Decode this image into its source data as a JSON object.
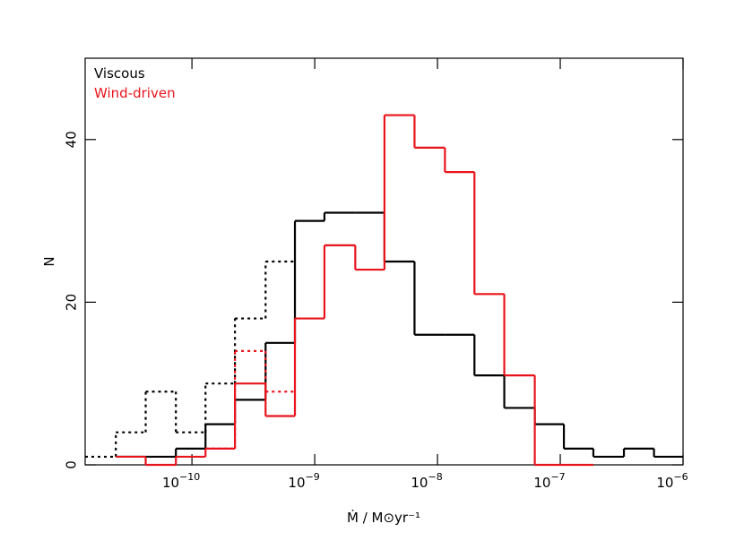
{
  "chart_data": {
    "type": "histogram",
    "xlabel": "Ṁ / M⊙yr⁻¹",
    "ylabel": "N",
    "xscale": "log",
    "xlim": [
      1.35e-11,
      1e-06
    ],
    "ylim": [
      0,
      50
    ],
    "xticks": [
      {
        "value": 1e-10,
        "label": "10−10"
      },
      {
        "value": 1e-09,
        "label": "10−9"
      },
      {
        "value": 1e-08,
        "label": "10−8"
      },
      {
        "value": 1e-07,
        "label": "10−7"
      },
      {
        "value": 1e-06,
        "label": "10−6"
      }
    ],
    "yticks": [
      0,
      20,
      40
    ],
    "bins": [
      1.35e-11,
      2.4e-11,
      4.2e-11,
      7.4e-11,
      1.29e-10,
      2.24e-10,
      3.98e-10,
      6.9e-10,
      1.2e-09,
      2.14e-09,
      3.7e-09,
      6.5e-09,
      1.15e-08,
      2e-08,
      3.5e-08,
      6.2e-08,
      1.07e-07,
      1.86e-07,
      3.3e-07,
      5.8e-07,
      1e-06
    ],
    "series": [
      {
        "name": "Viscous",
        "color": "#000000",
        "values": [
          null,
          1,
          1,
          2,
          5,
          8,
          15,
          30,
          31,
          31,
          25,
          16,
          16,
          11,
          7,
          5,
          2,
          1,
          2,
          1
        ],
        "dotted_values": [
          1,
          4,
          9,
          4,
          10,
          18,
          25,
          null,
          null,
          null,
          null,
          null,
          null,
          null,
          null,
          null,
          null,
          null,
          null,
          null
        ]
      },
      {
        "name": "Wind-driven",
        "color": "#e8141c",
        "values": [
          null,
          1,
          0,
          1,
          2,
          10,
          6,
          18,
          27,
          24,
          43,
          39,
          36,
          21,
          11,
          0,
          0,
          null,
          null,
          null
        ],
        "dotted_values": [
          null,
          null,
          null,
          null,
          2,
          14,
          9,
          null,
          null,
          null,
          null,
          null,
          null,
          null,
          null,
          null,
          null,
          null,
          null,
          null
        ]
      }
    ],
    "legend": "upper left"
  }
}
